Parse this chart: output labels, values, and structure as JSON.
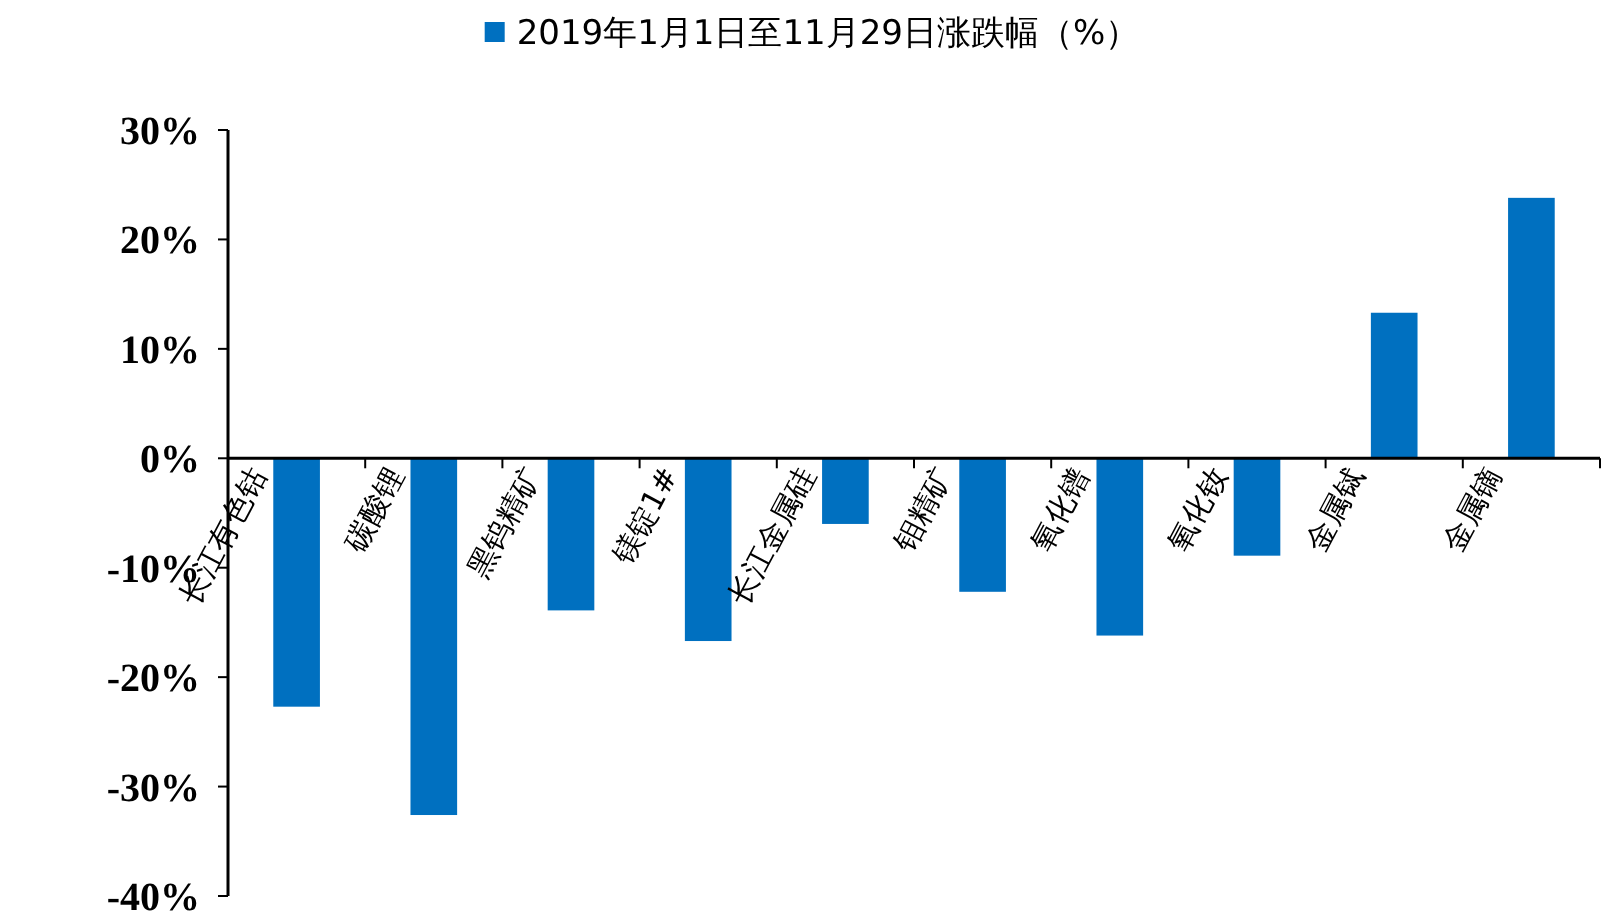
{
  "chart_data": {
    "type": "bar",
    "categories": [
      "长江有色钴",
      "碳酸锂",
      "黑钨精矿",
      "镁锭1#",
      "长江金属硅",
      "钼精矿",
      "氧化镨",
      "氧化钕",
      "金属铽",
      "金属镝"
    ],
    "series": [
      {
        "name": "2019年1月1日至11月29日涨跌幅（%）",
        "color": "#0070c0",
        "values": [
          -22.7,
          -32.6,
          -13.9,
          -16.7,
          -6.0,
          -12.2,
          -16.2,
          -8.9,
          13.3,
          23.8
        ]
      }
    ],
    "ylim": [
      -40,
      30
    ],
    "yticks": [
      {
        "value": -40,
        "label": "-40%"
      },
      {
        "value": -30,
        "label": "-30%"
      },
      {
        "value": -20,
        "label": "-20%"
      },
      {
        "value": -10,
        "label": "-10%"
      },
      {
        "value": 0,
        "label": "0%"
      },
      {
        "value": 10,
        "label": "10%"
      },
      {
        "value": 20,
        "label": "20%"
      },
      {
        "value": 30,
        "label": "30%"
      }
    ],
    "legend": "top",
    "grid": false
  }
}
